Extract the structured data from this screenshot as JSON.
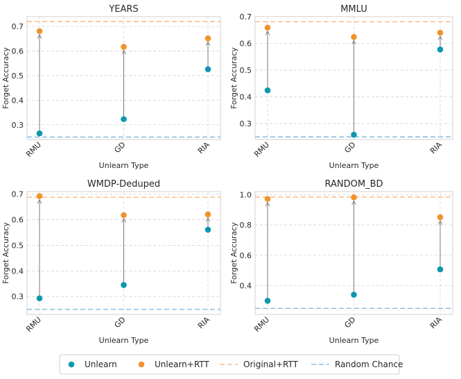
{
  "chart_data": [
    {
      "type": "scatter",
      "title": "YEARS",
      "xlabel": "Unlearn Type",
      "ylabel": "Forget Accuracy",
      "categories": [
        "RMU",
        "GD",
        "RIA"
      ],
      "ylim": [
        0.24,
        0.74
      ],
      "yticks": [
        0.3,
        0.4,
        0.5,
        0.6,
        0.7
      ],
      "ytick_labels": [
        "0.3",
        "0.4",
        "0.5",
        "0.6",
        "0.7"
      ],
      "series": [
        {
          "name": "Unlearn",
          "values": [
            0.265,
            0.323,
            0.526
          ]
        },
        {
          "name": "Unlearn+RTT",
          "values": [
            0.681,
            0.617,
            0.652
          ]
        }
      ],
      "original_rtt": 0.72,
      "random_chance": 0.25
    },
    {
      "type": "scatter",
      "title": "MMLU",
      "xlabel": "Unlearn Type",
      "ylabel": "Forget Accuracy",
      "categories": [
        "RMU",
        "GD",
        "RIA"
      ],
      "ylim": [
        0.24,
        0.7
      ],
      "yticks": [
        0.3,
        0.4,
        0.5,
        0.6,
        0.7
      ],
      "ytick_labels": [
        "0.3",
        "0.4",
        "0.5",
        "0.6",
        "0.7"
      ],
      "series": [
        {
          "name": "Unlearn",
          "values": [
            0.424,
            0.258,
            0.577
          ]
        },
        {
          "name": "Unlearn+RTT",
          "values": [
            0.659,
            0.624,
            0.64
          ]
        }
      ],
      "original_rtt": 0.681,
      "random_chance": 0.25
    },
    {
      "type": "scatter",
      "title": "WMDP-Deduped",
      "xlabel": "Unlearn Type",
      "ylabel": "Forget Accuracy",
      "categories": [
        "RMU",
        "GD",
        "RIA"
      ],
      "ylim": [
        0.23,
        0.71
      ],
      "yticks": [
        0.3,
        0.4,
        0.5,
        0.6,
        0.7
      ],
      "ytick_labels": [
        "0.3",
        "0.4",
        "0.5",
        "0.6",
        "0.7"
      ],
      "series": [
        {
          "name": "Unlearn",
          "values": [
            0.293,
            0.345,
            0.561
          ]
        },
        {
          "name": "Unlearn+RTT",
          "values": [
            0.692,
            0.618,
            0.621
          ]
        }
      ],
      "original_rtt": 0.688,
      "random_chance": 0.25
    },
    {
      "type": "scatter",
      "title": "RANDOM_BD",
      "xlabel": "Unlearn Type",
      "ylabel": "Forget Accuracy",
      "categories": [
        "RMU",
        "GD",
        "RIA"
      ],
      "ylim": [
        0.21,
        1.02
      ],
      "yticks": [
        0.4,
        0.6,
        0.8,
        1.0
      ],
      "ytick_labels": [
        "0.4",
        "0.6",
        "0.8",
        "1.0"
      ],
      "series": [
        {
          "name": "Unlearn",
          "values": [
            0.3,
            0.34,
            0.507
          ]
        },
        {
          "name": "Unlearn+RTT",
          "values": [
            0.972,
            0.982,
            0.851
          ]
        }
      ],
      "original_rtt": 0.985,
      "random_chance": 0.25
    }
  ],
  "legend": {
    "position": "bottom-center",
    "items": [
      {
        "label": "Unlearn",
        "kind": "marker",
        "color": "#0e97b1"
      },
      {
        "label": "Unlearn+RTT",
        "kind": "marker",
        "color": "#f0932c"
      },
      {
        "label": "Original+RTT",
        "kind": "dashed",
        "color": "#f8be8c"
      },
      {
        "label": "Random Chance",
        "kind": "dashed",
        "color": "#8fbfe0"
      }
    ]
  },
  "colors": {
    "unlearn": "#0e97b1",
    "unlearn_rtt": "#f0932c",
    "original_rtt": "#f8be8c",
    "random_chance": "#8fbfe0",
    "arrow": "#7a7a7a",
    "grid": "#d4d4d4",
    "frame": "#d0d0d0"
  }
}
